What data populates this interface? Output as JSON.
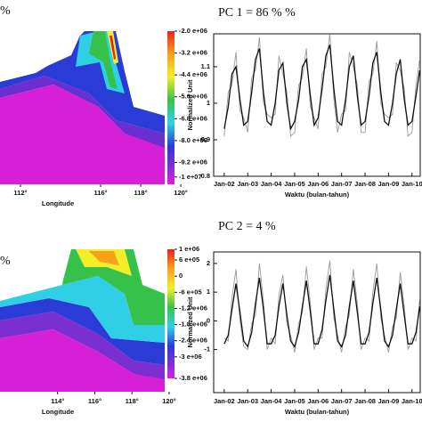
{
  "chart_data": [
    {
      "type": "map",
      "title": "%",
      "xlabel": "Longitude",
      "xlim": [
        110.98,
        120.53
      ],
      "xticks": [
        {
          "value": 112,
          "label": "112°"
        },
        {
          "value": 116,
          "label": "116°"
        },
        {
          "value": 118,
          "label": "118°"
        },
        {
          "value": 120,
          "label": "120°"
        }
      ],
      "colorbar_lim": [
        -10400000,
        -2000000
      ],
      "colorbar_ticks": [
        {
          "value": -2000000,
          "label": "-2.0 e+06"
        },
        {
          "value": -3200000,
          "label": "-3.2 e+06"
        },
        {
          "value": -4400000,
          "label": "-4.4 e+06"
        },
        {
          "value": -5600000,
          "label": "-5.6 e+06"
        },
        {
          "value": -6800000,
          "label": "-6.8 e+06"
        },
        {
          "value": -8000000,
          "label": "-8.0 e+06"
        },
        {
          "value": -9200000,
          "label": "-9.2 e+06"
        },
        {
          "value": -10000000,
          "label": "-1 e+07"
        }
      ]
    },
    {
      "type": "line",
      "title": "PC 1 = 86 % %",
      "ylabel": "Normalized Unit",
      "xlabel": "Waktu (bulan-tahun)",
      "xlim": [
        2001.55,
        2010.35
      ],
      "xticks": [
        {
          "value": 2002,
          "label": "Jan-02"
        },
        {
          "value": 2003,
          "label": "Jan-03"
        },
        {
          "value": 2004,
          "label": "Jan-04"
        },
        {
          "value": 2005,
          "label": "Jan-05"
        },
        {
          "value": 2006,
          "label": "Jan-06"
        },
        {
          "value": 2007,
          "label": "Jan-07"
        },
        {
          "value": 2008,
          "label": "Jan-08"
        },
        {
          "value": 2009,
          "label": "Jan-09"
        },
        {
          "value": 2010,
          "label": "Jan-10"
        }
      ],
      "ylim": [
        0.8,
        1.19
      ],
      "yticks": [
        0.8,
        0.9,
        1,
        1.1
      ],
      "x": [
        2002,
        2002.17,
        2002.33,
        2002.5,
        2002.67,
        2002.83,
        2003,
        2003.17,
        2003.33,
        2003.5,
        2003.67,
        2003.83,
        2004,
        2004.17,
        2004.33,
        2004.5,
        2004.67,
        2004.83,
        2005,
        2005.17,
        2005.33,
        2005.5,
        2005.67,
        2005.83,
        2006,
        2006.17,
        2006.33,
        2006.5,
        2006.67,
        2006.83,
        2007,
        2007.17,
        2007.33,
        2007.5,
        2007.67,
        2007.83,
        2008,
        2008.17,
        2008.33,
        2008.5,
        2008.67,
        2008.83,
        2009,
        2009.17,
        2009.33,
        2009.5,
        2009.67,
        2009.83,
        2010,
        2010.17,
        2010.33
      ],
      "series": [
        {
          "color": "#9a9a9a",
          "values": [
            0.91,
            1.03,
            1.05,
            1.14,
            0.98,
            0.96,
            0.92,
            1.07,
            1.09,
            1.18,
            1.0,
            0.97,
            0.96,
            0.97,
            1.13,
            1.08,
            1.03,
            0.91,
            0.92,
            1.05,
            1.07,
            1.15,
            0.99,
            0.96,
            0.93,
            1.08,
            1.1,
            1.19,
            1.01,
            0.92,
            0.97,
            0.98,
            1.14,
            1.1,
            1.05,
            0.92,
            0.92,
            1.06,
            1.08,
            1.17,
            1.0,
            0.97,
            0.96,
            0.97,
            1.11,
            1.09,
            1.04,
            0.91,
            0.92,
            1.05,
            1.12
          ]
        },
        {
          "color": "#111111",
          "values": [
            0.93,
            0.99,
            1.08,
            1.1,
            1.01,
            0.94,
            0.95,
            1.03,
            1.12,
            1.15,
            1.03,
            0.95,
            0.94,
            1.0,
            1.09,
            1.11,
            1.0,
            0.93,
            0.95,
            1.01,
            1.1,
            1.12,
            1.02,
            0.94,
            0.96,
            1.04,
            1.13,
            1.16,
            1.04,
            0.95,
            0.94,
            1.01,
            1.1,
            1.13,
            1.02,
            0.94,
            0.95,
            1.02,
            1.11,
            1.14,
            1.03,
            0.95,
            0.94,
            1.0,
            1.08,
            1.12,
            1.01,
            0.94,
            0.95,
            1.02,
            1.09
          ]
        }
      ]
    },
    {
      "type": "map",
      "title": "%",
      "xlabel": "Longitude",
      "xlim": [
        110.9,
        121.2
      ],
      "xticks": [
        {
          "value": 114,
          "label": "114°"
        },
        {
          "value": 116,
          "label": "116°"
        },
        {
          "value": 118,
          "label": "118°"
        },
        {
          "value": 120,
          "label": "120°"
        }
      ],
      "colorbar_lim": [
        -3800000,
        1000000
      ],
      "colorbar_ticks": [
        {
          "value": 1000000,
          "label": "1 e+06"
        },
        {
          "value": 600000,
          "label": "6 e+05"
        },
        {
          "value": 0,
          "label": "0"
        },
        {
          "value": -600000,
          "label": "-6 e+05"
        },
        {
          "value": -1200000,
          "label": "-1.2 e+06"
        },
        {
          "value": -1800000,
          "label": "-1.8 e+06"
        },
        {
          "value": -2400000,
          "label": "-2.4 e+06"
        },
        {
          "value": -3000000,
          "label": "-3 e+06"
        },
        {
          "value": -3800000,
          "label": "-3.8 e+06"
        }
      ]
    },
    {
      "type": "line",
      "title": "PC 2 = 4 %",
      "ylabel": "Normalized Unit",
      "xlabel": "Waktu (bulan-tahun)",
      "xlim": [
        2001.55,
        2010.35
      ],
      "xticks": [
        {
          "value": 2002,
          "label": "Jan-02"
        },
        {
          "value": 2003,
          "label": "Jan-03"
        },
        {
          "value": 2004,
          "label": "Jan-04"
        },
        {
          "value": 2005,
          "label": "Jan-05"
        },
        {
          "value": 2006,
          "label": "Jan-06"
        },
        {
          "value": 2007,
          "label": "Jan-07"
        },
        {
          "value": 2008,
          "label": "Jan-08"
        },
        {
          "value": 2009,
          "label": "Jan-09"
        },
        {
          "value": 2010,
          "label": "Jan-10"
        }
      ],
      "ylim": [
        -2.5,
        2.4
      ],
      "yticks": [
        -1,
        0,
        1,
        2
      ],
      "x": [
        2002,
        2002.17,
        2002.33,
        2002.5,
        2002.67,
        2002.83,
        2003,
        2003.17,
        2003.33,
        2003.5,
        2003.67,
        2003.83,
        2004,
        2004.17,
        2004.33,
        2004.5,
        2004.67,
        2004.83,
        2005,
        2005.17,
        2005.33,
        2005.5,
        2005.67,
        2005.83,
        2006,
        2006.17,
        2006.33,
        2006.5,
        2006.67,
        2006.83,
        2007,
        2007.17,
        2007.33,
        2007.5,
        2007.67,
        2007.83,
        2008,
        2008.17,
        2008.33,
        2008.5,
        2008.67,
        2008.83,
        2009,
        2009.17,
        2009.33,
        2009.5,
        2009.67,
        2009.83,
        2010,
        2010.17,
        2010.33
      ],
      "series": [
        {
          "color": "#9a9a9a",
          "values": [
            -0.6,
            -0.7,
            0.8,
            1.8,
            0.0,
            -0.9,
            -1.0,
            -0.1,
            0.2,
            2.0,
            0.7,
            -1.0,
            -0.6,
            -0.8,
            0.9,
            1.6,
            -0.1,
            -0.5,
            -1.1,
            -0.1,
            0.3,
            1.9,
            0.6,
            -1.0,
            -0.6,
            -0.6,
            1.1,
            2.1,
            0.1,
            -0.5,
            -1.1,
            -0.2,
            0.2,
            1.8,
            0.6,
            -1.0,
            -0.6,
            -0.7,
            1.0,
            2.0,
            0.1,
            -0.5,
            -1.1,
            -0.2,
            0.1,
            1.7,
            0.5,
            -1.0,
            -0.6,
            -0.7,
            0.8
          ]
        },
        {
          "color": "#111111",
          "values": [
            -0.8,
            -0.5,
            0.4,
            1.3,
            0.3,
            -0.7,
            -0.9,
            -0.4,
            0.6,
            1.5,
            0.4,
            -0.8,
            -0.8,
            -0.5,
            0.5,
            1.3,
            0.2,
            -0.7,
            -0.9,
            -0.4,
            0.5,
            1.4,
            0.3,
            -0.8,
            -0.8,
            -0.3,
            0.7,
            1.6,
            0.4,
            -0.7,
            -0.9,
            -0.5,
            0.5,
            1.4,
            0.3,
            -0.8,
            -0.8,
            -0.4,
            0.6,
            1.5,
            0.4,
            -0.7,
            -0.9,
            -0.5,
            0.4,
            1.3,
            0.2,
            -0.8,
            -0.8,
            -0.4,
            0.5
          ]
        }
      ]
    }
  ]
}
